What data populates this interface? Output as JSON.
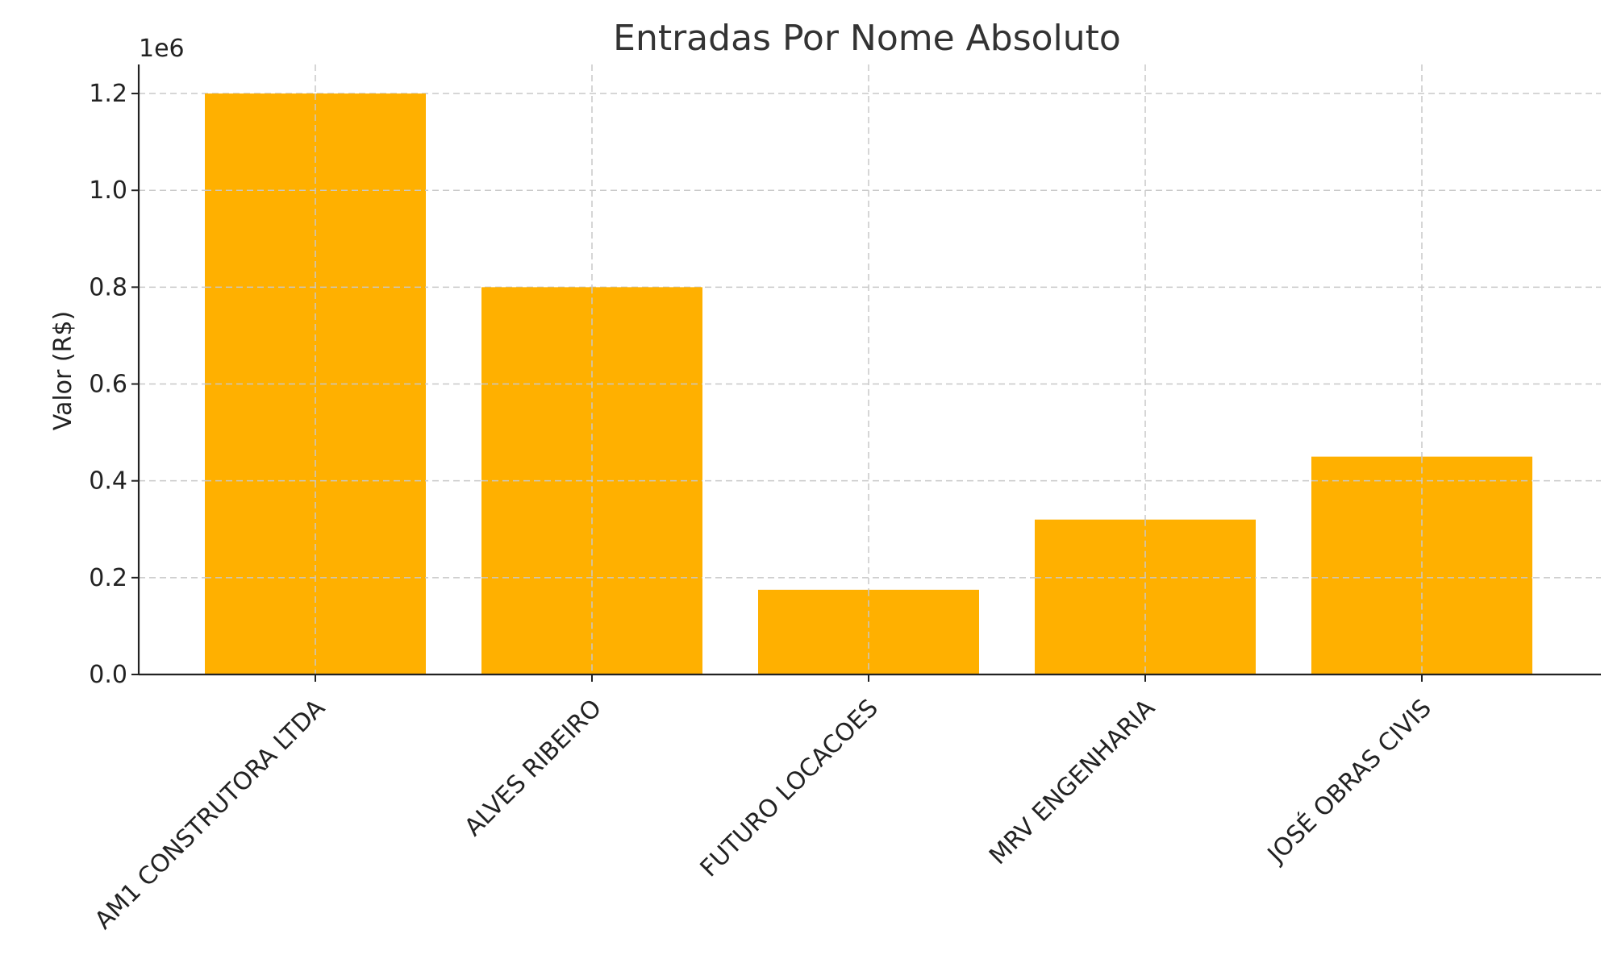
{
  "chart_data": {
    "type": "bar",
    "title": "Entradas Por Nome Absoluto",
    "xlabel": "",
    "ylabel": "Valor (R$)",
    "y_scale_label": "1e6",
    "categories": [
      "AM1 CONSTRUTORA LTDA",
      "ALVES RIBEIRO",
      "FUTURO LOCACOES",
      "MRV ENGENHARIA",
      "JOSÉ OBRAS CIVIS"
    ],
    "values": [
      1200000,
      800000,
      175000,
      320000,
      450000
    ],
    "ylim": [
      0,
      1260000
    ],
    "yticks": [
      0,
      200000,
      400000,
      600000,
      800000,
      1000000,
      1200000
    ],
    "ytick_labels": [
      "0.0",
      "0.2",
      "0.4",
      "0.6",
      "0.8",
      "1.0",
      "1.2"
    ],
    "grid": true,
    "bar_color": "#FFB000"
  }
}
